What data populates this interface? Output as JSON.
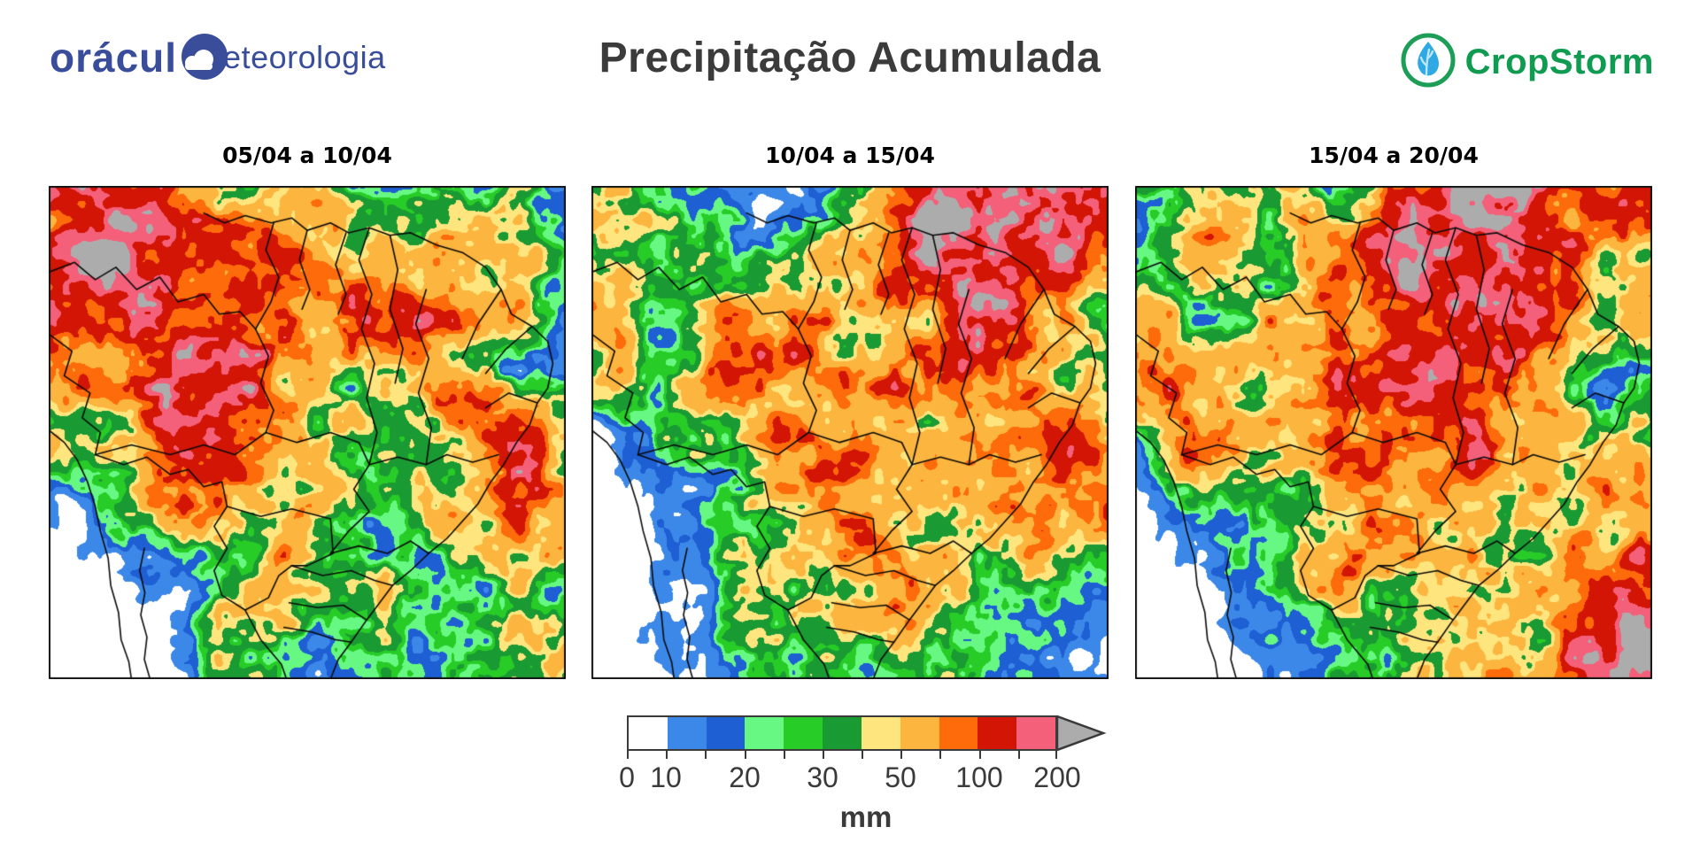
{
  "header": {
    "logo_left": {
      "part1": "orácul",
      "part2": "eteorologia",
      "color": "#3A4D9B",
      "icon": "cloud-in-circle"
    },
    "title": "Precipitação Acumulada",
    "logo_right": {
      "text": "CropStorm",
      "color": "#0F9B50",
      "icon": "leaf-droplet-in-circle",
      "ring_color": "#1D9E57",
      "droplet_color": "#2FA9E4"
    }
  },
  "panels": [
    {
      "title": "05/04 a 10/04"
    },
    {
      "title": "10/04 a 15/04"
    },
    {
      "title": "15/04 a 20/04"
    }
  ],
  "colorbar": {
    "unit": "mm",
    "levels": [
      0,
      10,
      15,
      20,
      25,
      30,
      40,
      50,
      75,
      100,
      150,
      200
    ],
    "tick_labels": [
      "0",
      "10",
      "",
      "20",
      "",
      "30",
      "",
      "50",
      "",
      "100",
      "",
      "200"
    ],
    "colors": [
      "#FFFFFF",
      "#3C88E9",
      "#1E5FD3",
      "#66F882",
      "#27CC27",
      "#1A9A33",
      "#FFE57E",
      "#FCB53E",
      "#FD6B0B",
      "#D21505",
      "#F45F79"
    ],
    "overflow_color": "#ACACAC",
    "frame_color": "#3a3a3a"
  },
  "map_field": {
    "description": "Estimated accumulated precipitation (mm), coarse 10x9 grid per panel, left-to-right = west-to-east, top-to-bottom = north-to-south",
    "noise_seeds": [
      11,
      22,
      33
    ],
    "panels": [
      {
        "grid": [
          [
            150,
            115,
            130,
            20,
            25,
            30,
            28,
            30,
            25,
            14
          ],
          [
            125,
            170,
            150,
            130,
            85,
            60,
            70,
            80,
            55,
            30
          ],
          [
            100,
            185,
            165,
            120,
            90,
            80,
            100,
            60,
            35,
            22
          ],
          [
            90,
            125,
            145,
            100,
            60,
            50,
            60,
            45,
            20,
            15
          ],
          [
            45,
            60,
            95,
            70,
            50,
            45,
            60,
            80,
            135,
            55
          ],
          [
            12,
            28,
            60,
            80,
            45,
            40,
            55,
            70,
            90,
            40
          ],
          [
            4,
            8,
            22,
            45,
            55,
            35,
            30,
            28,
            40,
            30
          ],
          [
            3,
            5,
            12,
            30,
            42,
            35,
            30,
            35,
            30,
            26
          ],
          [
            2,
            3,
            8,
            20,
            32,
            26,
            30,
            35,
            30,
            26
          ]
        ]
      },
      {
        "grid": [
          [
            55,
            40,
            30,
            15,
            12,
            50,
            130,
            190,
            140,
            90
          ],
          [
            50,
            45,
            35,
            20,
            40,
            90,
            200,
            215,
            170,
            110
          ],
          [
            60,
            35,
            60,
            80,
            95,
            120,
            160,
            180,
            60,
            35
          ],
          [
            45,
            50,
            70,
            95,
            110,
            100,
            130,
            120,
            45,
            25
          ],
          [
            12,
            20,
            50,
            70,
            80,
            70,
            90,
            110,
            150,
            80
          ],
          [
            6,
            10,
            25,
            40,
            50,
            60,
            70,
            90,
            120,
            90
          ],
          [
            4,
            8,
            15,
            35,
            60,
            45,
            40,
            50,
            60,
            40
          ],
          [
            3,
            6,
            12,
            40,
            70,
            60,
            35,
            30,
            22,
            14
          ],
          [
            2,
            4,
            10,
            30,
            50,
            40,
            30,
            20,
            12,
            8
          ]
        ]
      },
      {
        "grid": [
          [
            20,
            30,
            25,
            40,
            60,
            130,
            190,
            160,
            120,
            100
          ],
          [
            25,
            35,
            45,
            60,
            80,
            140,
            160,
            120,
            90,
            115
          ],
          [
            30,
            40,
            35,
            50,
            90,
            110,
            130,
            90,
            40,
            60
          ],
          [
            45,
            60,
            50,
            70,
            80,
            90,
            100,
            60,
            30,
            35
          ],
          [
            22,
            85,
            60,
            50,
            60,
            70,
            80,
            50,
            35,
            30
          ],
          [
            8,
            30,
            45,
            35,
            40,
            45,
            55,
            60,
            40,
            45
          ],
          [
            4,
            10,
            20,
            30,
            50,
            70,
            60,
            45,
            50,
            60
          ],
          [
            3,
            5,
            10,
            15,
            30,
            40,
            35,
            60,
            80,
            90
          ],
          [
            2,
            3,
            6,
            10,
            20,
            30,
            40,
            70,
            110,
            130
          ]
        ]
      }
    ]
  },
  "geography": {
    "border_color": "#0a0a0a",
    "borders": [
      {
        "id": "coast-atlantic",
        "pts": [
          [
            0.3,
            0.055
          ],
          [
            0.34,
            0.075
          ],
          [
            0.38,
            0.06
          ],
          [
            0.43,
            0.075
          ],
          [
            0.47,
            0.065
          ],
          [
            0.5,
            0.09
          ],
          [
            0.545,
            0.075
          ],
          [
            0.58,
            0.095
          ],
          [
            0.62,
            0.085
          ],
          [
            0.66,
            0.1
          ],
          [
            0.7,
            0.095
          ],
          [
            0.75,
            0.12
          ],
          [
            0.8,
            0.135
          ],
          [
            0.845,
            0.165
          ],
          [
            0.875,
            0.21
          ],
          [
            0.895,
            0.26
          ],
          [
            0.935,
            0.285
          ],
          [
            0.965,
            0.315
          ],
          [
            0.975,
            0.36
          ],
          [
            0.965,
            0.41
          ],
          [
            0.945,
            0.44
          ],
          [
            0.93,
            0.485
          ],
          [
            0.905,
            0.52
          ],
          [
            0.88,
            0.565
          ],
          [
            0.855,
            0.6
          ],
          [
            0.83,
            0.645
          ],
          [
            0.8,
            0.68
          ],
          [
            0.77,
            0.715
          ],
          [
            0.735,
            0.745
          ],
          [
            0.7,
            0.78
          ],
          [
            0.665,
            0.81
          ],
          [
            0.64,
            0.845
          ],
          [
            0.615,
            0.88
          ],
          [
            0.585,
            0.925
          ],
          [
            0.56,
            0.96
          ],
          [
            0.545,
            1.0
          ]
        ]
      },
      {
        "id": "coast-pacific",
        "pts": [
          [
            0.0,
            0.495
          ],
          [
            0.03,
            0.52
          ],
          [
            0.055,
            0.555
          ],
          [
            0.075,
            0.6
          ],
          [
            0.09,
            0.65
          ],
          [
            0.1,
            0.7
          ],
          [
            0.115,
            0.755
          ],
          [
            0.12,
            0.81
          ],
          [
            0.135,
            0.865
          ],
          [
            0.14,
            0.92
          ],
          [
            0.155,
            0.965
          ],
          [
            0.16,
            1.0
          ]
        ]
      },
      {
        "id": "border-chile-argentina",
        "pts": [
          [
            0.185,
            0.735
          ],
          [
            0.176,
            0.78
          ],
          [
            0.186,
            0.825
          ],
          [
            0.178,
            0.87
          ],
          [
            0.19,
            0.915
          ],
          [
            0.185,
            0.96
          ],
          [
            0.196,
            1.0
          ]
        ]
      },
      {
        "id": "border-northwest",
        "pts": [
          [
            0.0,
            0.175
          ],
          [
            0.05,
            0.155
          ],
          [
            0.09,
            0.19
          ],
          [
            0.13,
            0.165
          ],
          [
            0.17,
            0.21
          ],
          [
            0.215,
            0.185
          ],
          [
            0.25,
            0.235
          ],
          [
            0.3,
            0.22
          ],
          [
            0.33,
            0.26
          ],
          [
            0.37,
            0.255
          ],
          [
            0.4,
            0.29
          ]
        ]
      },
      {
        "id": "border-guyana-1",
        "pts": [
          [
            0.435,
            0.075
          ],
          [
            0.42,
            0.13
          ],
          [
            0.445,
            0.185
          ],
          [
            0.43,
            0.235
          ],
          [
            0.4,
            0.29
          ]
        ]
      },
      {
        "id": "border-guyana-2",
        "pts": [
          [
            0.5,
            0.09
          ],
          [
            0.485,
            0.15
          ],
          [
            0.505,
            0.21
          ],
          [
            0.49,
            0.25
          ]
        ]
      },
      {
        "id": "border-guyana-3",
        "pts": [
          [
            0.575,
            0.095
          ],
          [
            0.555,
            0.16
          ],
          [
            0.575,
            0.22
          ],
          [
            0.56,
            0.26
          ]
        ]
      },
      {
        "id": "border-peru",
        "pts": [
          [
            0.0,
            0.3
          ],
          [
            0.045,
            0.335
          ],
          [
            0.03,
            0.385
          ],
          [
            0.08,
            0.42
          ],
          [
            0.065,
            0.47
          ],
          [
            0.1,
            0.5
          ],
          [
            0.09,
            0.545
          ]
        ]
      },
      {
        "id": "border-bolivia",
        "pts": [
          [
            0.09,
            0.545
          ],
          [
            0.145,
            0.565
          ],
          [
            0.19,
            0.55
          ],
          [
            0.235,
            0.585
          ],
          [
            0.27,
            0.575
          ],
          [
            0.3,
            0.61
          ],
          [
            0.335,
            0.6
          ],
          [
            0.345,
            0.65
          ],
          [
            0.32,
            0.69
          ],
          [
            0.345,
            0.735
          ]
        ]
      },
      {
        "id": "border-paraguay",
        "pts": [
          [
            0.345,
            0.735
          ],
          [
            0.32,
            0.78
          ],
          [
            0.335,
            0.83
          ],
          [
            0.38,
            0.86
          ],
          [
            0.425,
            0.835
          ],
          [
            0.445,
            0.79
          ],
          [
            0.47,
            0.77
          ]
        ]
      },
      {
        "id": "border-argentina-south",
        "pts": [
          [
            0.38,
            0.86
          ],
          [
            0.41,
            0.92
          ],
          [
            0.45,
            0.97
          ],
          [
            0.46,
            1.0
          ]
        ]
      },
      {
        "id": "state-am-pa",
        "pts": [
          [
            0.4,
            0.29
          ],
          [
            0.425,
            0.345
          ],
          [
            0.41,
            0.4
          ],
          [
            0.435,
            0.455
          ],
          [
            0.42,
            0.5
          ]
        ]
      },
      {
        "id": "state-am-south",
        "pts": [
          [
            0.09,
            0.545
          ],
          [
            0.16,
            0.525
          ],
          [
            0.235,
            0.545
          ],
          [
            0.3,
            0.525
          ],
          [
            0.36,
            0.545
          ],
          [
            0.42,
            0.5
          ]
        ]
      },
      {
        "id": "state-pa-to",
        "pts": [
          [
            0.62,
            0.085
          ],
          [
            0.6,
            0.15
          ],
          [
            0.625,
            0.22
          ],
          [
            0.605,
            0.29
          ],
          [
            0.63,
            0.36
          ],
          [
            0.615,
            0.43
          ],
          [
            0.635,
            0.5
          ],
          [
            0.62,
            0.565
          ]
        ]
      },
      {
        "id": "state-mt",
        "pts": [
          [
            0.42,
            0.5
          ],
          [
            0.48,
            0.52
          ],
          [
            0.545,
            0.5
          ],
          [
            0.6,
            0.52
          ],
          [
            0.62,
            0.565
          ],
          [
            0.59,
            0.615
          ],
          [
            0.62,
            0.66
          ],
          [
            0.58,
            0.7
          ],
          [
            0.545,
            0.745
          ]
        ]
      },
      {
        "id": "state-ms",
        "pts": [
          [
            0.345,
            0.65
          ],
          [
            0.41,
            0.67
          ],
          [
            0.47,
            0.655
          ],
          [
            0.545,
            0.675
          ],
          [
            0.55,
            0.745
          ],
          [
            0.5,
            0.77
          ],
          [
            0.47,
            0.77
          ]
        ]
      },
      {
        "id": "state-go-mg",
        "pts": [
          [
            0.62,
            0.565
          ],
          [
            0.675,
            0.55
          ],
          [
            0.73,
            0.565
          ],
          [
            0.77,
            0.545
          ],
          [
            0.82,
            0.56
          ],
          [
            0.87,
            0.545
          ]
        ]
      },
      {
        "id": "state-ba-west",
        "pts": [
          [
            0.73,
            0.21
          ],
          [
            0.71,
            0.28
          ],
          [
            0.735,
            0.35
          ],
          [
            0.715,
            0.42
          ],
          [
            0.74,
            0.49
          ],
          [
            0.73,
            0.565
          ]
        ]
      },
      {
        "id": "state-ma-pi",
        "pts": [
          [
            0.66,
            0.1
          ],
          [
            0.675,
            0.17
          ],
          [
            0.66,
            0.25
          ],
          [
            0.685,
            0.33
          ],
          [
            0.67,
            0.4
          ]
        ]
      },
      {
        "id": "state-ne-1",
        "pts": [
          [
            0.875,
            0.21
          ],
          [
            0.83,
            0.28
          ],
          [
            0.8,
            0.35
          ]
        ]
      },
      {
        "id": "state-ne-2",
        "pts": [
          [
            0.935,
            0.285
          ],
          [
            0.885,
            0.33
          ],
          [
            0.845,
            0.38
          ]
        ]
      },
      {
        "id": "state-ne-3",
        "pts": [
          [
            0.945,
            0.44
          ],
          [
            0.89,
            0.42
          ],
          [
            0.845,
            0.45
          ]
        ]
      },
      {
        "id": "state-mg-sp",
        "pts": [
          [
            0.545,
            0.745
          ],
          [
            0.6,
            0.73
          ],
          [
            0.655,
            0.745
          ],
          [
            0.7,
            0.72
          ],
          [
            0.735,
            0.745
          ]
        ]
      },
      {
        "id": "state-sp-pr",
        "pts": [
          [
            0.47,
            0.77
          ],
          [
            0.53,
            0.79
          ],
          [
            0.585,
            0.78
          ],
          [
            0.63,
            0.8
          ],
          [
            0.665,
            0.81
          ]
        ]
      },
      {
        "id": "state-pr-sc",
        "pts": [
          [
            0.465,
            0.845
          ],
          [
            0.52,
            0.855
          ],
          [
            0.57,
            0.85
          ],
          [
            0.615,
            0.88
          ]
        ]
      },
      {
        "id": "state-sc-rs",
        "pts": [
          [
            0.455,
            0.895
          ],
          [
            0.51,
            0.905
          ],
          [
            0.555,
            0.92
          ],
          [
            0.585,
            0.925
          ]
        ]
      }
    ]
  }
}
